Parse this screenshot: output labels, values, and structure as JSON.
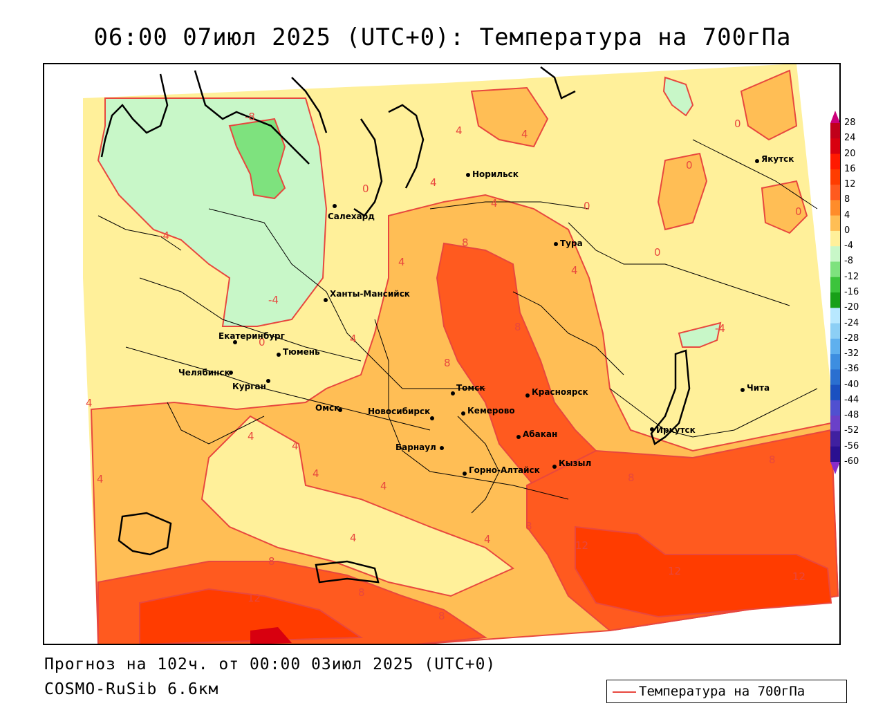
{
  "title": "06:00 07июл 2025 (UTC+0): Температура на 700гПа",
  "footer": {
    "forecast": "Прогноз на 102ч. от 00:00 03июл 2025 (UTC+0)",
    "model": "COSMO-RuSib 6.6км"
  },
  "legend": {
    "label": "Температура на 700гПа",
    "line_color": "#e8473e"
  },
  "color_scale": {
    "labels": [
      "28",
      "24",
      "20",
      "16",
      "12",
      "8",
      "4",
      "0",
      "-4",
      "-8",
      "-12",
      "-16",
      "-20",
      "-24",
      "-28",
      "-32",
      "-36",
      "-40",
      "-44",
      "-48",
      "-52",
      "-56",
      "-60"
    ],
    "colors": [
      "#c0001a",
      "#d8000f",
      "#ff1a00",
      "#ff3c00",
      "#ff5a1f",
      "#ff8c2a",
      "#ffbe55",
      "#fff09a",
      "#c8f7c8",
      "#7ee27e",
      "#3cc43c",
      "#18a018",
      "#b8e8ff",
      "#8ccff5",
      "#5fb0ee",
      "#3d8ee0",
      "#2a6fd0",
      "#1a50c0",
      "#5050d0",
      "#6a40c8",
      "#4020a0",
      "#2a1090"
    ]
  },
  "colors": {
    "green_dark": "#7ee27e",
    "green_light": "#c8f7c8",
    "yellow_light": "#fff09a",
    "orange_light": "#ffbe55",
    "orange": "#ff8c2a",
    "red_orange": "#ff5a1f",
    "red": "#e8473e",
    "dark_red": "#d8000f"
  },
  "cities": [
    {
      "name": "Норильск"
    },
    {
      "name": "Салехард"
    },
    {
      "name": "Тура"
    },
    {
      "name": "Якутск"
    },
    {
      "name": "Ханты-Мансийск"
    },
    {
      "name": "Екатеринбург"
    },
    {
      "name": "Тюмень"
    },
    {
      "name": "Челябинск"
    },
    {
      "name": "Курган"
    },
    {
      "name": "Омск"
    },
    {
      "name": "Новосибирск"
    },
    {
      "name": "Томск"
    },
    {
      "name": "Кемерово"
    },
    {
      "name": "Красноярск"
    },
    {
      "name": "Абакан"
    },
    {
      "name": "Барнаул"
    },
    {
      "name": "Горно-Алтайск"
    },
    {
      "name": "Кызыл"
    },
    {
      "name": "Иркутск"
    },
    {
      "name": "Чита"
    }
  ],
  "isotherm_labels": [
    "-8",
    "-4",
    "-4",
    "0",
    "0",
    "0",
    "0",
    "0",
    "0",
    "0",
    "-4",
    "4",
    "4",
    "4",
    "4",
    "4",
    "4",
    "4",
    "4",
    "4",
    "4",
    "4",
    "4",
    "4",
    "4",
    "4",
    "8",
    "8",
    "8",
    "8",
    "8",
    "8",
    "8",
    "8",
    "8",
    "12",
    "12",
    "12",
    "12"
  ]
}
